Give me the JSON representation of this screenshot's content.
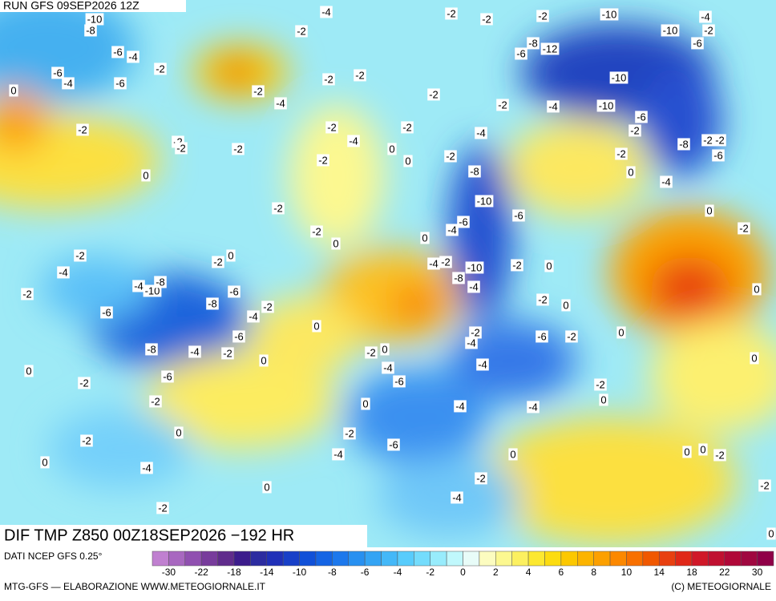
{
  "header": {
    "run": "RUN GFS 09SEP2026 12Z"
  },
  "footer": {
    "product": "DIF TMP Z850 00Z18SEP2026 −192 HR",
    "source": "DATI NCEP GFS 0.25°",
    "credit": "MTG-GFS — ELABORAZIONE WWW.METEOGIORNALE.IT",
    "copyright": "(C) METEOGIORNALE"
  },
  "legend": {
    "ticks": [
      -30,
      -22,
      -18,
      -14,
      -10,
      -8,
      -6,
      -4,
      -2,
      0,
      2,
      4,
      6,
      8,
      10,
      14,
      18,
      22,
      30
    ],
    "colors": [
      "#c080d0",
      "#a868c0",
      "#9050b0",
      "#783c9c",
      "#602c8c",
      "#3c1c8c",
      "#2c2ca0",
      "#2030b8",
      "#1840c8",
      "#1050d8",
      "#1464e4",
      "#1c78ec",
      "#2890f0",
      "#34a4f4",
      "#44b8f8",
      "#58ccfc",
      "#74dcfc",
      "#98ecfc",
      "#c0f8fc",
      "#e8fcf8",
      "#fcfcc0",
      "#fcf890",
      "#fcf060",
      "#fce830",
      "#fcdc10",
      "#fcc800",
      "#fcb400",
      "#fca000",
      "#fc8800",
      "#f87000",
      "#f05800",
      "#e84010",
      "#e02818",
      "#d01828",
      "#c01030",
      "#b00838",
      "#a00840",
      "#900048"
    ]
  },
  "map": {
    "labels": [
      -10,
      -8,
      -6,
      -4,
      -6,
      -4,
      -6,
      -2,
      0,
      -2,
      -2,
      -2,
      -2,
      0,
      -4,
      -2,
      -2,
      -4,
      -2,
      -2,
      -2,
      -4,
      -2,
      -2,
      -2,
      0,
      -2,
      0,
      -2,
      -4,
      -2,
      -4,
      -10,
      -8,
      -6,
      -8,
      -6,
      -4,
      -2,
      -6,
      -8,
      -4,
      -2,
      -6,
      -2,
      0,
      -2,
      0,
      -2,
      0,
      -4,
      -2,
      0,
      0,
      0,
      -2,
      0,
      -4,
      -6,
      0,
      -2,
      -4,
      -6,
      -2,
      -2,
      -2,
      -10,
      -4,
      -2,
      -10,
      -6,
      -8,
      -6,
      -12,
      -10,
      -10,
      -4,
      -2,
      -2,
      -2,
      0,
      0,
      -2,
      -4,
      -8,
      -10,
      -6,
      -6,
      -4,
      0,
      -2,
      -4,
      -10,
      -8,
      -4,
      -2,
      0,
      -6,
      -2,
      -2,
      0,
      -8,
      -2,
      -2,
      -6,
      -4,
      0,
      -2,
      0,
      -2,
      0,
      -6,
      -2,
      0,
      -2,
      -4,
      -4,
      -2,
      0,
      -4,
      -4,
      0,
      0,
      -2,
      -4,
      0,
      0,
      -2,
      -2,
      0
    ]
  }
}
